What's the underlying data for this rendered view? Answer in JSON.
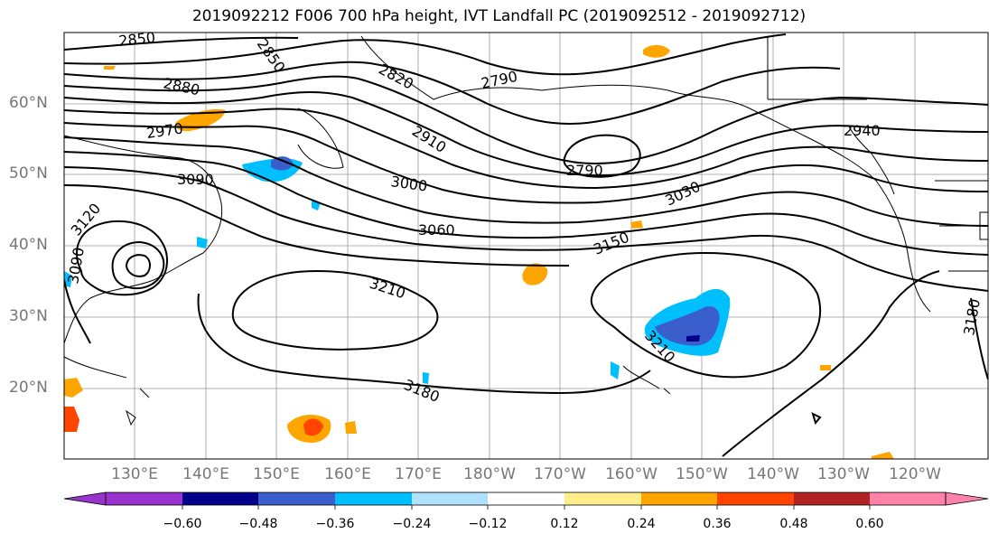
{
  "title": "2019092212 F006 700 hPa height, IVT Landfall PC (2019092512 - 2019092712)",
  "lat_labels": [
    "60°N",
    "50°N",
    "40°N",
    "30°N",
    "20°N"
  ],
  "lon_labels": [
    "130°E",
    "140°E",
    "150°E",
    "160°E",
    "170°E",
    "180°W",
    "170°W",
    "160°W",
    "150°W",
    "140°W",
    "130°W",
    "120°W"
  ],
  "contour_labels": [
    "2850",
    "2850",
    "2820",
    "2790",
    "2880",
    "2970",
    "2910",
    "2940",
    "2790",
    "3000",
    "3090",
    "3030",
    "3120",
    "3060",
    "3150",
    "3090",
    "3210",
    "3210",
    "3180",
    "3180"
  ],
  "colorbar": {
    "colors": [
      "#9a32cd",
      "#00008b",
      "#3a5fcd",
      "#00bfff",
      "#b0e2ff",
      "#ffffff",
      "#ffec8b",
      "#ffa500",
      "#ff4500",
      "#b22222",
      "#ff82ab"
    ],
    "tick_labels": [
      "−0.60",
      "−0.48",
      "−0.36",
      "−0.24",
      "−0.12",
      "0.12",
      "0.24",
      "0.36",
      "0.48",
      "0.60"
    ]
  }
}
